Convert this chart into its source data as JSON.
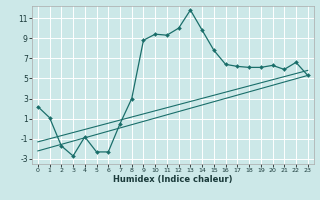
{
  "xlabel": "Humidex (Indice chaleur)",
  "ylabel": "",
  "background_color": "#cce8e8",
  "grid_color": "#ffffff",
  "line_color": "#1a6e6a",
  "xlim": [
    -0.5,
    23.5
  ],
  "ylim": [
    -3.5,
    12.2
  ],
  "xticks": [
    0,
    1,
    2,
    3,
    4,
    5,
    6,
    7,
    8,
    9,
    10,
    11,
    12,
    13,
    14,
    15,
    16,
    17,
    18,
    19,
    20,
    21,
    22,
    23
  ],
  "yticks": [
    -3,
    -1,
    1,
    3,
    5,
    7,
    9,
    11
  ],
  "curve1_x": [
    0,
    1,
    2,
    3,
    4,
    5,
    6,
    7,
    8,
    9,
    10,
    11,
    12,
    13,
    14,
    15,
    16,
    17,
    18,
    19,
    20,
    21,
    22,
    23
  ],
  "curve1_y": [
    2.2,
    1.1,
    -1.7,
    -2.7,
    -0.8,
    -2.3,
    -2.3,
    0.5,
    3.0,
    8.8,
    9.4,
    9.3,
    10.0,
    11.8,
    9.8,
    7.8,
    6.4,
    6.2,
    6.1,
    6.1,
    6.3,
    5.9,
    6.6,
    5.3
  ],
  "curve2_x": [
    0,
    23
  ],
  "curve2_y": [
    -2.2,
    5.3
  ],
  "curve3_x": [
    0,
    23
  ],
  "curve3_y": [
    -1.3,
    5.8
  ],
  "xtick_labels": [
    "0",
    "1",
    "2",
    "3",
    "4",
    "5",
    "6",
    "7",
    "8",
    "9",
    "10",
    "11",
    "12",
    "13",
    "14",
    "15",
    "16",
    "17",
    "18",
    "19",
    "20",
    "21",
    "22",
    "23"
  ],
  "ytick_labels": [
    "-3",
    "-1",
    "1",
    "3",
    "5",
    "7",
    "9",
    "11"
  ]
}
